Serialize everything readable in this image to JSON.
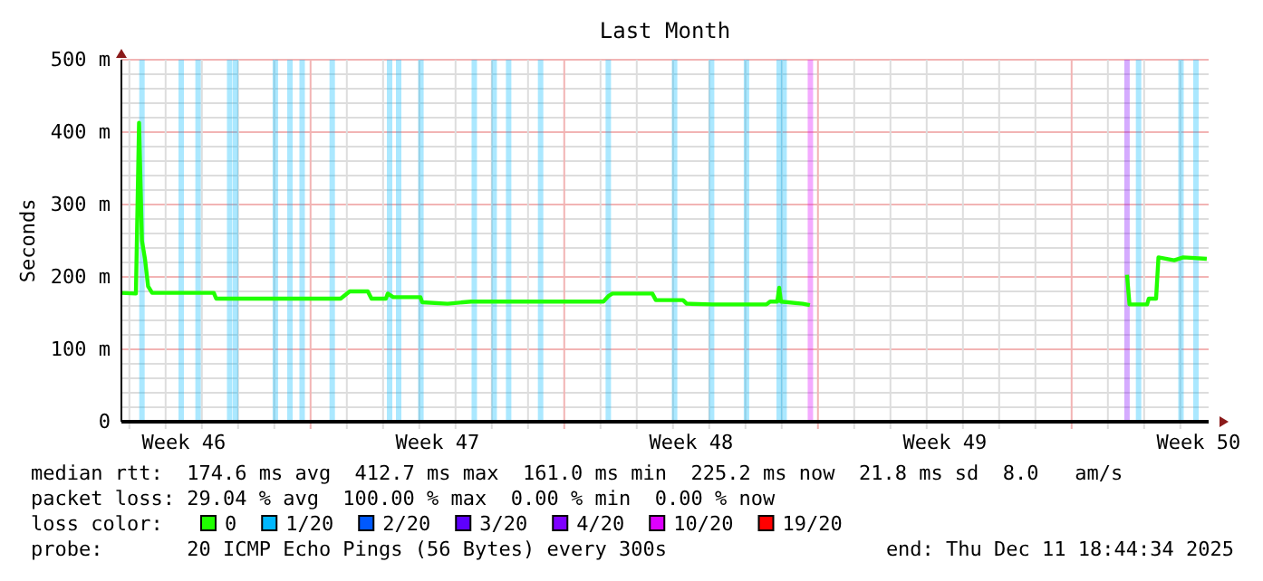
{
  "chart_data": {
    "type": "line",
    "title": "Last Month",
    "ylabel": "Seconds",
    "legend_title": "loss color:",
    "legend": "bottom",
    "grid": true,
    "xlim": [
      "2025-11-11T18:44",
      "2025-12-11T18:44"
    ],
    "xticks": [
      {
        "value": "2025-11-13T12:00",
        "label": "Week 46"
      },
      {
        "value": "2025-11-20T12:00",
        "label": "Week 47"
      },
      {
        "value": "2025-11-27T12:00",
        "label": "Week 48"
      },
      {
        "value": "2025-12-04T12:00",
        "label": "Week 49"
      },
      {
        "value": "2025-12-11T12:00",
        "label": "Week 50"
      },
      {
        "value": "2025-11-12",
        "label": null
      },
      {
        "value": "2025-11-13",
        "label": null
      },
      {
        "value": "2025-11-14",
        "label": null
      },
      {
        "value": "2025-11-15",
        "label": null
      },
      {
        "value": "2025-11-16",
        "label": null
      },
      {
        "value": "2025-11-17",
        "label": null
      },
      {
        "value": "2025-11-18",
        "label": null
      },
      {
        "value": "2025-11-19",
        "label": null
      },
      {
        "value": "2025-11-20",
        "label": null
      },
      {
        "value": "2025-11-21",
        "label": null
      },
      {
        "value": "2025-11-22",
        "label": null
      },
      {
        "value": "2025-11-23",
        "label": null
      },
      {
        "value": "2025-11-24",
        "label": null
      },
      {
        "value": "2025-11-25",
        "label": null
      },
      {
        "value": "2025-11-26",
        "label": null
      },
      {
        "value": "2025-11-27",
        "label": null
      },
      {
        "value": "2025-11-28",
        "label": null
      },
      {
        "value": "2025-11-29",
        "label": null
      },
      {
        "value": "2025-11-30",
        "label": null
      },
      {
        "value": "2025-12-01",
        "label": null
      },
      {
        "value": "2025-12-02",
        "label": null
      },
      {
        "value": "2025-12-03",
        "label": null
      },
      {
        "value": "2025-12-04",
        "label": null
      },
      {
        "value": "2025-12-05",
        "label": null
      },
      {
        "value": "2025-12-06",
        "label": null
      },
      {
        "value": "2025-12-07",
        "label": null
      },
      {
        "value": "2025-12-08",
        "label": null
      },
      {
        "value": "2025-12-09",
        "label": null
      },
      {
        "value": "2025-12-10",
        "label": null
      },
      {
        "value": "2025-12-11",
        "label": null
      }
    ],
    "ylim": [
      0,
      500
    ],
    "yticks": [
      0,
      {
        "value": 100,
        "label": "100 m"
      },
      {
        "value": 200,
        "label": "200 m"
      },
      {
        "value": 300,
        "label": "300 m"
      },
      {
        "value": 400,
        "label": "400 m"
      },
      {
        "value": 500,
        "label": "500 m"
      },
      {
        "value": 20,
        "label": null
      },
      {
        "value": 40,
        "label": null
      },
      {
        "value": 60,
        "label": null
      },
      {
        "value": 80,
        "label": null
      },
      {
        "value": 120,
        "label": null
      },
      {
        "value": 140,
        "label": null
      },
      {
        "value": 160,
        "label": null
      },
      {
        "value": 180,
        "label": null
      },
      {
        "value": 220,
        "label": null
      },
      {
        "value": 240,
        "label": null
      },
      {
        "value": 260,
        "label": null
      },
      {
        "value": 280,
        "label": null
      },
      {
        "value": 320,
        "label": null
      },
      {
        "value": 340,
        "label": null
      },
      {
        "value": 360,
        "label": null
      },
      {
        "value": 380,
        "label": null
      },
      {
        "value": 420,
        "label": null
      },
      {
        "value": 440,
        "label": null
      },
      {
        "value": 460,
        "label": null
      },
      {
        "value": 480,
        "label": null
      }
    ],
    "series": [
      {
        "name": "0",
        "color": "#20ff00",
        "x": [
          "2025-11-11T18:44",
          "2025-11-12T04:20",
          "2025-11-12T06:25",
          "2025-11-12T08:20",
          "2025-11-12T10:20",
          "2025-11-12T12:25",
          "2025-11-12T15:05",
          "2025-11-14T07:55",
          "2025-11-14T09:30",
          "2025-11-17T19:55",
          "2025-11-18T01:55",
          "2025-11-18T13:55",
          "2025-11-18T16:20",
          "2025-11-19T01:55",
          "2025-11-19T03:05",
          "2025-11-19T06:45",
          "2025-11-20T00:45",
          "2025-11-20T01:55",
          "2025-11-20T18:45",
          "2025-11-21T10:20",
          "2025-11-25T01:55",
          "2025-11-25T05:30",
          "2025-11-25T07:55",
          "2025-11-26T10:20",
          "2025-11-26T12:40",
          "2025-11-27T06:40",
          "2025-11-27T09:05",
          "2025-11-28T01:55",
          "2025-11-29T13:55",
          "2025-11-29T16:20",
          "2025-11-29T21:05",
          "2025-11-29T22:20",
          "2025-11-29T23:30",
          "2025-11-30T13:55",
          "2025-11-30T18:40",
          "2025-12-05T00:00",
          "2025-12-09T12:40",
          "2025-12-09T14:20",
          "2025-12-10T02:00",
          "2025-12-10T03:05",
          "2025-12-10T07:55",
          "2025-12-10T09:30",
          "2025-12-10T19:55",
          "2025-12-11T01:55",
          "2025-12-11T17:30"
        ],
        "values": [
          178,
          177,
          413,
          250,
          225,
          187,
          178,
          178,
          170,
          170,
          180,
          180,
          170,
          170,
          177,
          172,
          172,
          165,
          163,
          166,
          166,
          174,
          177,
          177,
          168,
          168,
          163,
          162,
          162,
          166,
          166,
          185,
          166,
          163,
          161,
          null,
          203,
          162,
          162,
          170,
          170,
          227,
          223,
          227,
          225
        ]
      },
      {
        "name": "1/20",
        "type": "bar",
        "color": "#00b8ff",
        "x": [
          "2025-11-12T08:20",
          "2025-11-13T10:20",
          "2025-11-13T21:30",
          "2025-11-14T18:25",
          "2025-11-14T22:20",
          "2025-11-16T00:40",
          "2025-11-16T10:20",
          "2025-11-16T18:25",
          "2025-11-17T14:20",
          "2025-11-19T04:20",
          "2025-11-19T10:20",
          "2025-11-20T01:05",
          "2025-11-21T12:25",
          "2025-11-22T01:35",
          "2025-11-22T11:10",
          "2025-11-23T08:20",
          "2025-11-25T05:10",
          "2025-11-27T01:05",
          "2025-11-28T01:35",
          "2025-11-29T00:40",
          "2025-11-29T22:20",
          "2025-11-30T01:35",
          "2025-12-09T20:20",
          "2025-12-11T00:25",
          "2025-12-11T10:20"
        ],
        "values": [
          500,
          500,
          500,
          500,
          500,
          500,
          500,
          500,
          500,
          500,
          500,
          500,
          500,
          500,
          500,
          500,
          500,
          500,
          500,
          500,
          500,
          500,
          500,
          500,
          500
        ]
      },
      {
        "name": "2/20",
        "type": "bar",
        "color": "#0059ff"
      },
      {
        "name": "3/20",
        "type": "bar",
        "color": "#5e00ff"
      },
      {
        "name": "4/20",
        "type": "bar",
        "color": "#7e00ff",
        "x": [
          "2025-12-09T12:40"
        ],
        "values": [
          500
        ]
      },
      {
        "name": "10/20",
        "type": "bar",
        "color": "#dd00ff",
        "x": [
          "2025-11-30T19:00"
        ],
        "values": [
          500
        ]
      },
      {
        "name": "19/20",
        "type": "bar",
        "color": "#ff0000"
      }
    ],
    "annotations": [
      "median rtt:  174.6 ms avg  412.7 ms max  161.0 ms min  225.2 ms now  21.8 ms sd  8.0   am/s",
      "packet loss: 29.04 % avg  100.00 % max  0.00 % min  0.00 % now",
      "probe:       20 ICMP Echo Pings (56 Bytes) every 300s",
      "end: Thu Dec 11 18:44:34 2025"
    ]
  }
}
